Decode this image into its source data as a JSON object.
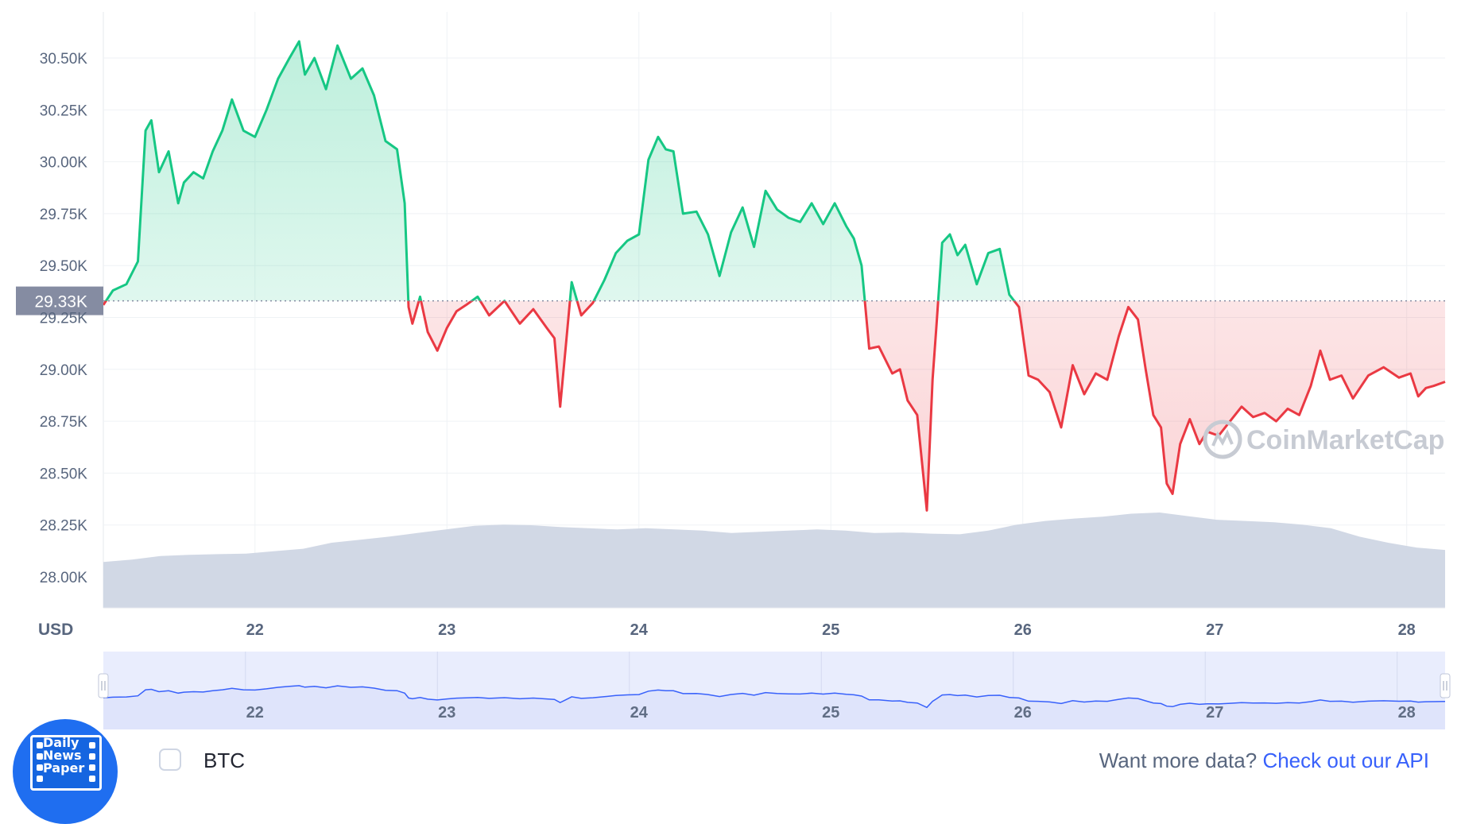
{
  "chart_data": {
    "type": "line",
    "unit_label": "USD",
    "y_ticks": [
      "28.00K",
      "28.25K",
      "28.50K",
      "28.75K",
      "29.00K",
      "29.25K",
      "29.50K",
      "29.75K",
      "30.00K",
      "30.25K",
      "30.50K"
    ],
    "y_tick_values": [
      28000,
      28250,
      28500,
      28750,
      29000,
      29250,
      29500,
      29750,
      30000,
      30250,
      30500
    ],
    "x_ticks": [
      "22",
      "23",
      "24",
      "25",
      "26",
      "27",
      "28"
    ],
    "x_tick_values": [
      22,
      23,
      24,
      25,
      26,
      27,
      28
    ],
    "xlim": [
      21.21,
      28.2
    ],
    "ylim": [
      27850,
      30650
    ],
    "reference_price": 29330,
    "reference_label": "29.33K",
    "series": [
      {
        "color_above": "#16c784",
        "color_below": "#ea3943",
        "x": [
          21.21,
          21.26,
          21.33,
          21.39,
          21.43,
          21.46,
          21.5,
          21.55,
          21.6,
          21.63,
          21.68,
          21.73,
          21.78,
          21.83,
          21.88,
          21.94,
          22.0,
          22.06,
          22.12,
          22.18,
          22.23,
          22.26,
          22.31,
          22.37,
          22.43,
          22.5,
          22.56,
          22.62,
          22.68,
          22.74,
          22.78,
          22.8,
          22.82,
          22.86,
          22.9,
          22.95,
          23.0,
          23.05,
          23.1,
          23.16,
          23.22,
          23.3,
          23.38,
          23.45,
          23.52,
          23.56,
          23.59,
          23.62,
          23.65,
          23.7,
          23.76,
          23.82,
          23.88,
          23.94,
          24.0,
          24.05,
          24.1,
          24.14,
          24.18,
          24.23,
          24.3,
          24.36,
          24.42,
          24.48,
          24.54,
          24.6,
          24.66,
          24.72,
          24.78,
          24.84,
          24.9,
          24.96,
          25.02,
          25.08,
          25.12,
          25.16,
          25.2,
          25.25,
          25.32,
          25.36,
          25.4,
          25.45,
          25.5,
          25.53,
          25.55,
          25.58,
          25.62,
          25.66,
          25.7,
          25.76,
          25.82,
          25.88,
          25.93,
          25.98,
          26.03,
          26.08,
          26.14,
          26.2,
          26.26,
          26.32,
          26.38,
          26.44,
          26.5,
          26.55,
          26.6,
          26.64,
          26.68,
          26.72,
          26.75,
          26.78,
          26.82,
          26.87,
          26.92,
          26.96,
          27.02,
          27.08,
          27.14,
          27.2,
          27.26,
          27.32,
          27.38,
          27.44,
          27.5,
          27.55,
          27.6,
          27.66,
          27.72,
          27.8,
          27.88,
          27.96,
          28.02,
          28.06,
          28.1,
          28.14,
          28.2
        ],
        "y": [
          29310,
          29380,
          29410,
          29520,
          30150,
          30200,
          29950,
          30050,
          29800,
          29900,
          29950,
          29920,
          30050,
          30150,
          30300,
          30150,
          30120,
          30250,
          30400,
          30500,
          30580,
          30420,
          30500,
          30350,
          30560,
          30400,
          30450,
          30320,
          30100,
          30060,
          29800,
          29300,
          29220,
          29350,
          29180,
          29090,
          29200,
          29280,
          29310,
          29350,
          29260,
          29330,
          29220,
          29290,
          29200,
          29150,
          28820,
          29120,
          29420,
          29260,
          29320,
          29430,
          29560,
          29620,
          29650,
          30010,
          30120,
          30060,
          30050,
          29750,
          29760,
          29650,
          29450,
          29660,
          29780,
          29590,
          29860,
          29770,
          29730,
          29710,
          29800,
          29700,
          29800,
          29690,
          29630,
          29500,
          29100,
          29110,
          28980,
          29000,
          28850,
          28780,
          28320,
          28950,
          29210,
          29610,
          29650,
          29550,
          29600,
          29410,
          29560,
          29580,
          29360,
          29300,
          28970,
          28950,
          28890,
          28720,
          29020,
          28880,
          28980,
          28950,
          29160,
          29300,
          29240,
          29000,
          28780,
          28720,
          28450,
          28400,
          28640,
          28760,
          28640,
          28700,
          28680,
          28750,
          28820,
          28770,
          28790,
          28750,
          28810,
          28780,
          28920,
          29090,
          28950,
          28970,
          28860,
          28970,
          29010,
          28960,
          28980,
          28870,
          28910,
          28920,
          28940
        ]
      }
    ],
    "volume": {
      "color": "#cfd6e4",
      "relative": [
        0.18,
        0.22,
        0.28,
        0.3,
        0.31,
        0.32,
        0.36,
        0.4,
        0.5,
        0.55,
        0.6,
        0.66,
        0.72,
        0.78,
        0.8,
        0.79,
        0.76,
        0.74,
        0.72,
        0.74,
        0.72,
        0.7,
        0.66,
        0.68,
        0.7,
        0.72,
        0.7,
        0.66,
        0.67,
        0.65,
        0.64,
        0.7,
        0.8,
        0.86,
        0.9,
        0.93,
        0.98,
        1.0,
        0.94,
        0.88,
        0.86,
        0.84,
        0.8,
        0.74,
        0.6,
        0.5,
        0.42,
        0.38
      ]
    },
    "navigator": {
      "x_ticks": [
        "22",
        "23",
        "24",
        "25",
        "26",
        "27",
        "28"
      ],
      "line_color": "#3861fb",
      "fill_color": "#e9edfd"
    },
    "watermark": "CoinMarketCap"
  },
  "legend": {
    "series_label": "BTC"
  },
  "footer": {
    "prompt_text": "Want more data?",
    "link_text": "Check out our API"
  },
  "badge": {
    "text": "Daily\nNews\nPaper"
  }
}
